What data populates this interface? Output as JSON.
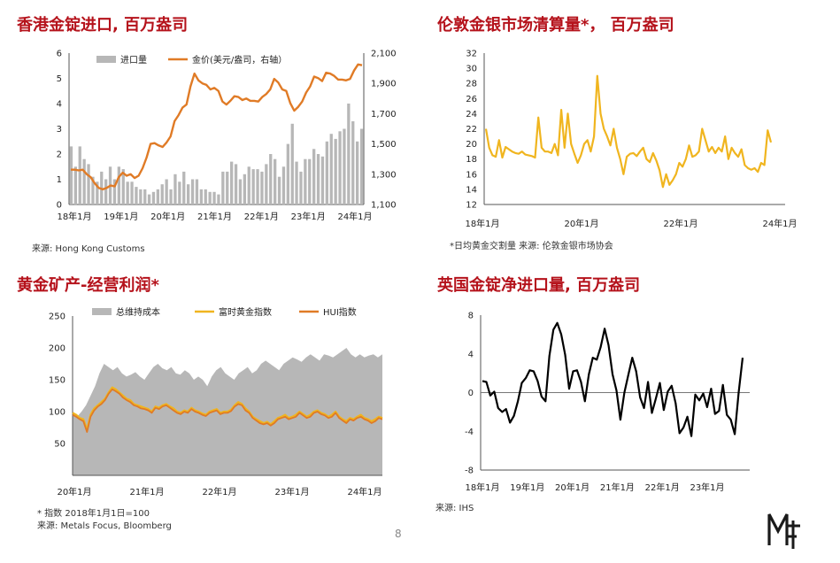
{
  "page_number": "8",
  "colors": {
    "title": "#b5121b",
    "gray": "#b7b7b7",
    "orange": "#e07b26",
    "gold": "#f0b51f",
    "black": "#000000"
  },
  "logo_icon": "mf-logo-icon",
  "c1": {
    "title": "香港金锭进口, 百万盎司",
    "source": "来源: Hong Kong Customs",
    "legend": [
      "进口量",
      "金价(美元/盎司，右轴）"
    ],
    "chart_data": {
      "type": "bar+line",
      "x_ticks": [
        "18年1月",
        "19年1月",
        "20年1月",
        "21年1月",
        "22年1月",
        "23年1月",
        "24年1月"
      ],
      "left_ylim": [
        0,
        6
      ],
      "left_ticks": [
        "0",
        "1",
        "2",
        "3",
        "4",
        "5",
        "6"
      ],
      "right_ylim": [
        1100,
        2100
      ],
      "right_ticks": [
        "1,100",
        "1,300",
        "1,500",
        "1,700",
        "1,900",
        "2,100"
      ],
      "series": [
        {
          "name": "进口量",
          "type": "bar",
          "values": [
            2.3,
            1.5,
            2.3,
            1.8,
            1.6,
            1.1,
            0.9,
            1.3,
            1.0,
            1.5,
            1.0,
            1.5,
            1.4,
            0.9,
            0.9,
            0.7,
            0.6,
            0.6,
            0.4,
            0.5,
            0.6,
            0.8,
            1.0,
            0.6,
            1.2,
            0.9,
            1.3,
            0.8,
            1.0,
            1.0,
            0.6,
            0.6,
            0.5,
            0.5,
            0.4,
            1.3,
            1.3,
            1.7,
            1.6,
            1.0,
            1.2,
            1.5,
            1.4,
            1.4,
            1.3,
            1.6,
            2.0,
            1.8,
            1.1,
            1.5,
            2.4,
            3.2,
            1.7,
            1.3,
            1.8,
            1.8,
            2.2,
            2.0,
            1.9,
            2.5,
            2.8,
            2.6,
            2.9,
            3.0,
            4.0,
            3.3,
            2.5,
            3.0
          ]
        },
        {
          "name": "金价(美元/盎司，右轴）",
          "type": "line",
          "values": [
            1330,
            1330,
            1325,
            1330,
            1300,
            1280,
            1240,
            1210,
            1200,
            1210,
            1225,
            1220,
            1280,
            1310,
            1290,
            1300,
            1275,
            1290,
            1340,
            1410,
            1500,
            1505,
            1490,
            1480,
            1510,
            1550,
            1650,
            1690,
            1740,
            1760,
            1880,
            1965,
            1920,
            1900,
            1890,
            1860,
            1870,
            1850,
            1780,
            1760,
            1785,
            1815,
            1810,
            1790,
            1800,
            1785,
            1785,
            1780,
            1810,
            1830,
            1860,
            1930,
            1905,
            1860,
            1850,
            1770,
            1720,
            1745,
            1780,
            1840,
            1880,
            1945,
            1935,
            1915,
            1970,
            1965,
            1950,
            1925,
            1925,
            1920,
            1930,
            1985,
            2025,
            2020
          ]
        }
      ]
    }
  },
  "c2": {
    "title": "伦敦金银市场清算量*， 百万盎司",
    "source": "*日均黄金交割量 来源: 伦敦金银市场协会",
    "chart_data": {
      "type": "line",
      "x_ticks": [
        "18年1月",
        "20年1月",
        "22年1月",
        "24年1月"
      ],
      "ylim": [
        12,
        32
      ],
      "y_ticks": [
        "12",
        "14",
        "16",
        "18",
        "20",
        "22",
        "24",
        "26",
        "28",
        "30",
        "32"
      ],
      "series": [
        {
          "name": "",
          "values": [
            22,
            19.5,
            18.5,
            18.3,
            20.5,
            18.2,
            19.6,
            19.3,
            19,
            18.8,
            18.7,
            19,
            18.6,
            18.5,
            18.4,
            18.2,
            23.5,
            19.5,
            19,
            19,
            18.8,
            20,
            18.5,
            24.5,
            19.5,
            24,
            20,
            18.7,
            17.5,
            18.5,
            20,
            20.5,
            19,
            21,
            29,
            24,
            22,
            21,
            19.8,
            22,
            19.5,
            18,
            16,
            18.3,
            18.7,
            18.8,
            18.4,
            19,
            19.5,
            18,
            17.6,
            18.8,
            17.8,
            16.5,
            14.3,
            16,
            14.6,
            15.2,
            16,
            17.5,
            17,
            18,
            19.8,
            18.3,
            18.5,
            19,
            22,
            20.5,
            19,
            19.6,
            18.8,
            19.5,
            19,
            21,
            18,
            19.5,
            18.8,
            18.3,
            19.3,
            17.2,
            16.8,
            16.6,
            16.8,
            16.3,
            17.5,
            17.2,
            21.8,
            20.2
          ]
        }
      ]
    }
  },
  "c3": {
    "title": "黄金矿产-经营利润*",
    "notes": [
      "* 指数 2018年1月1日=100",
      "来源: Metals Focus, Bloomberg"
    ],
    "legend": [
      "总维持成本",
      "富时黄金指数",
      "HUI指数"
    ],
    "chart_data": {
      "type": "area+line",
      "x_ticks": [
        "20年1月",
        "21年1月",
        "22年1月",
        "23年1月",
        "24年1月"
      ],
      "ylim": [
        0,
        250
      ],
      "y_ticks": [
        "50",
        "100",
        "150",
        "200",
        "250"
      ],
      "series": [
        {
          "name": "总维持成本",
          "type": "area",
          "values": [
            95,
            92,
            100,
            110,
            125,
            140,
            160,
            175,
            170,
            165,
            170,
            160,
            155,
            158,
            162,
            155,
            150,
            160,
            170,
            175,
            168,
            165,
            170,
            160,
            158,
            165,
            160,
            150,
            155,
            150,
            140,
            155,
            165,
            170,
            160,
            155,
            150,
            160,
            165,
            170,
            160,
            165,
            175,
            180,
            175,
            170,
            165,
            175,
            180,
            185,
            182,
            178,
            185,
            190,
            185,
            180,
            190,
            188,
            185,
            190,
            195,
            200,
            190,
            185,
            190,
            185,
            188,
            190,
            185,
            190
          ]
        },
        {
          "name": "富时黄金指数",
          "type": "line",
          "values": [
            98,
            95,
            90,
            88,
            72,
            95,
            105,
            110,
            115,
            120,
            130,
            138,
            135,
            130,
            125,
            120,
            118,
            112,
            110,
            108,
            106,
            104,
            100,
            108,
            106,
            110,
            112,
            108,
            105,
            100,
            98,
            102,
            100,
            106,
            102,
            100,
            97,
            95,
            100,
            102,
            104,
            98,
            100,
            100,
            103,
            110,
            115,
            112,
            105,
            100,
            92,
            88,
            85,
            82,
            84,
            80,
            85,
            90,
            92,
            95,
            90,
            92,
            95,
            100,
            96,
            92,
            95,
            100,
            102,
            98,
            96,
            92,
            95,
            100,
            92,
            88,
            85,
            90,
            88,
            92,
            95,
            90,
            88,
            85,
            88,
            92,
            90
          ]
        },
        {
          "name": "HUI指数",
          "type": "line",
          "values": [
            95,
            92,
            88,
            85,
            68,
            92,
            102,
            108,
            112,
            118,
            128,
            135,
            132,
            128,
            122,
            118,
            115,
            110,
            108,
            105,
            104,
            102,
            98,
            106,
            104,
            108,
            110,
            106,
            102,
            98,
            96,
            100,
            98,
            104,
            100,
            98,
            95,
            93,
            98,
            100,
            102,
            96,
            98,
            98,
            101,
            108,
            112,
            110,
            102,
            98,
            90,
            86,
            82,
            80,
            82,
            78,
            82,
            88,
            90,
            92,
            88,
            90,
            92,
            98,
            94,
            90,
            92,
            98,
            100,
            96,
            94,
            90,
            92,
            98,
            90,
            86,
            82,
            88,
            86,
            90,
            92,
            88,
            86,
            82,
            85,
            90,
            88
          ]
        }
      ]
    }
  },
  "c4": {
    "title": "英国金锭净进口量, 百万盎司",
    "source": "来源: IHS",
    "chart_data": {
      "type": "line",
      "x_ticks": [
        "18年1月",
        "19年1月",
        "20年1月",
        "21年1月",
        "22年1月",
        "23年1月"
      ],
      "ylim": [
        -8,
        8
      ],
      "y_ticks": [
        "-8",
        "-4",
        "0",
        "4",
        "8"
      ],
      "series": [
        {
          "name": "",
          "values": [
            1.2,
            1.1,
            -0.3,
            0.1,
            -1.6,
            -2.0,
            -1.7,
            -3.1,
            -2.4,
            -0.9,
            1.0,
            1.5,
            2.3,
            2.2,
            1.2,
            -0.4,
            -0.9,
            3.8,
            6.5,
            7.2,
            6.0,
            3.9,
            0.4,
            2.2,
            2.3,
            1.1,
            -0.9,
            1.9,
            3.6,
            3.4,
            4.7,
            6.6,
            4.9,
            1.9,
            0.2,
            -2.8,
            0,
            1.8,
            3.6,
            2.2,
            -0.5,
            -1.6,
            1.1,
            -2.1,
            -0.6,
            1.0,
            -1.8,
            0.1,
            0.7,
            -1.1,
            -4.2,
            -3.6,
            -2.5,
            -4.5,
            -0.2,
            -0.8,
            -0.1,
            -1.5,
            0.4,
            -2.2,
            -1.9,
            0.8,
            -2.3,
            -2.8,
            -4.3,
            0,
            3.6
          ]
        }
      ]
    }
  }
}
